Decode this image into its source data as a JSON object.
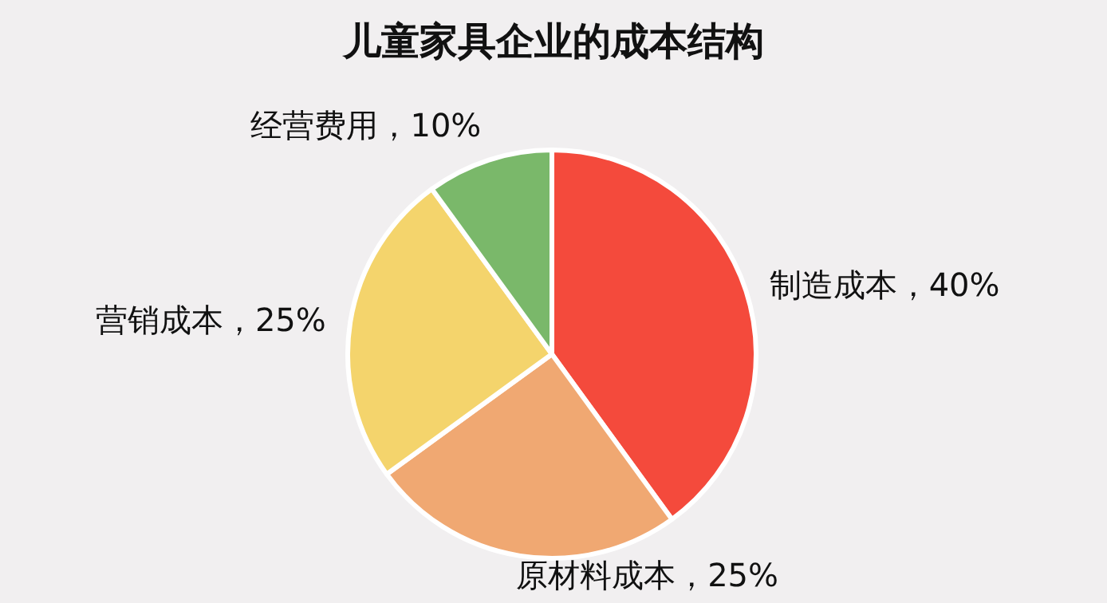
{
  "chart_data": {
    "type": "pie",
    "title": "儿童家具企业的成本结构",
    "categories": [
      "制造成本",
      "原材料成本",
      "营销成本",
      "经营费用"
    ],
    "values": [
      40,
      25,
      25,
      10
    ],
    "value_labels": [
      "40%",
      "25%",
      "25%",
      "10%"
    ],
    "colors": [
      "#f44a3c",
      "#f0a872",
      "#f4d46c",
      "#7ab86a"
    ]
  }
}
